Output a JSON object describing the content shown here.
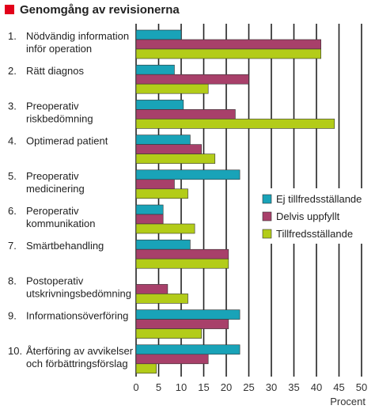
{
  "chart_data": {
    "type": "bar",
    "orientation": "horizontal",
    "title": "Genomgång av revisionerna",
    "xlabel": "Procent",
    "ylabel": "",
    "xlim": [
      0,
      50
    ],
    "xticks": [
      0,
      5,
      10,
      15,
      20,
      25,
      30,
      35,
      40,
      45,
      50
    ],
    "grid": true,
    "legend_position": "right",
    "categories": [
      {
        "number": "1.",
        "lines": [
          "Nödvändig information",
          "inför operation"
        ]
      },
      {
        "number": "2.",
        "lines": [
          "Rätt diagnos"
        ]
      },
      {
        "number": "3.",
        "lines": [
          "Preoperativ",
          "riskbedömning"
        ]
      },
      {
        "number": "4.",
        "lines": [
          "Optimerad patient"
        ]
      },
      {
        "number": "5.",
        "lines": [
          "Preoperativ",
          "medicinering"
        ]
      },
      {
        "number": "6.",
        "lines": [
          "Peroperativ",
          "kommunikation"
        ]
      },
      {
        "number": "7.",
        "lines": [
          "Smärtbehandling"
        ]
      },
      {
        "number": "8.",
        "lines": [
          "Postoperativ",
          "utskrivningsbedömning"
        ]
      },
      {
        "number": "9.",
        "lines": [
          "Informationsöverföring"
        ]
      },
      {
        "number": "10.",
        "lines": [
          "Återföring av avvikelser",
          "och förbättringsförslag"
        ]
      }
    ],
    "series": [
      {
        "name": "Ej tillfredsställande",
        "color": "#19a3b8",
        "values": [
          10,
          8.5,
          10.5,
          12,
          23,
          6,
          12,
          0,
          23,
          23
        ]
      },
      {
        "name": "Delvis uppfyllt",
        "color": "#a8406a",
        "values": [
          41,
          25,
          22,
          14.5,
          8.5,
          6,
          20.5,
          7,
          20.5,
          16
        ]
      },
      {
        "name": "Tillfredsställande",
        "color": "#b3cc19",
        "values": [
          41,
          16,
          44,
          17.5,
          11.5,
          13,
          20.5,
          11.5,
          14.5,
          4.5
        ]
      }
    ]
  },
  "colors": {
    "title_square": "#e2001a",
    "grid": "#222222"
  }
}
